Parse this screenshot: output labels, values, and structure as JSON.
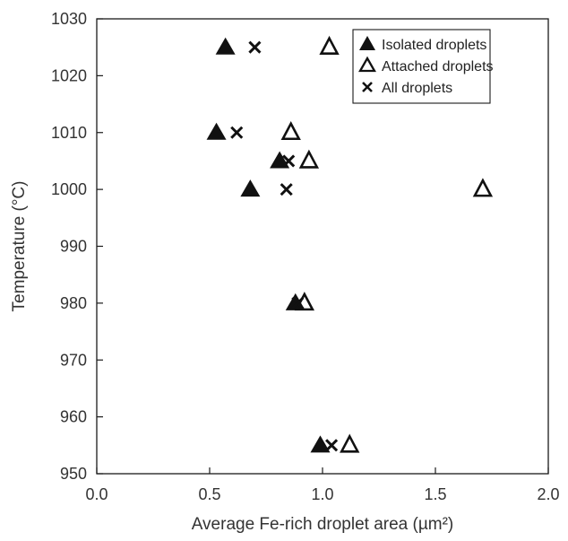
{
  "chart_data": {
    "type": "scatter",
    "xlabel": "Average Fe-rich droplet area (µm²)",
    "ylabel": "Temperature (°C)",
    "xlim": [
      0.0,
      2.0
    ],
    "ylim": [
      950,
      1030
    ],
    "xticks": [
      "0.0",
      "0.5",
      "1.0",
      "1.5",
      "2.0"
    ],
    "yticks": [
      "950",
      "960",
      "970",
      "980",
      "990",
      "1000",
      "1010",
      "1020",
      "1030"
    ],
    "grid": false,
    "legend_position": "top-right",
    "series": [
      {
        "name": "Isolated droplets",
        "marker": "filled-triangle",
        "color": "#111111",
        "points": [
          {
            "x": 0.57,
            "y": 1025
          },
          {
            "x": 0.53,
            "y": 1010
          },
          {
            "x": 0.81,
            "y": 1005
          },
          {
            "x": 0.68,
            "y": 1000
          },
          {
            "x": 0.88,
            "y": 980
          },
          {
            "x": 0.99,
            "y": 955
          }
        ]
      },
      {
        "name": "Attached droplets",
        "marker": "open-triangle",
        "color": "#111111",
        "points": [
          {
            "x": 1.03,
            "y": 1025
          },
          {
            "x": 0.86,
            "y": 1010
          },
          {
            "x": 0.94,
            "y": 1005
          },
          {
            "x": 1.71,
            "y": 1000
          },
          {
            "x": 0.92,
            "y": 980
          },
          {
            "x": 1.12,
            "y": 955
          }
        ]
      },
      {
        "name": "All droplets",
        "marker": "x",
        "color": "#111111",
        "points": [
          {
            "x": 0.7,
            "y": 1025
          },
          {
            "x": 0.62,
            "y": 1010
          },
          {
            "x": 0.85,
            "y": 1005
          },
          {
            "x": 0.84,
            "y": 1000
          },
          {
            "x": 0.89,
            "y": 980
          },
          {
            "x": 1.04,
            "y": 955
          }
        ]
      }
    ]
  }
}
